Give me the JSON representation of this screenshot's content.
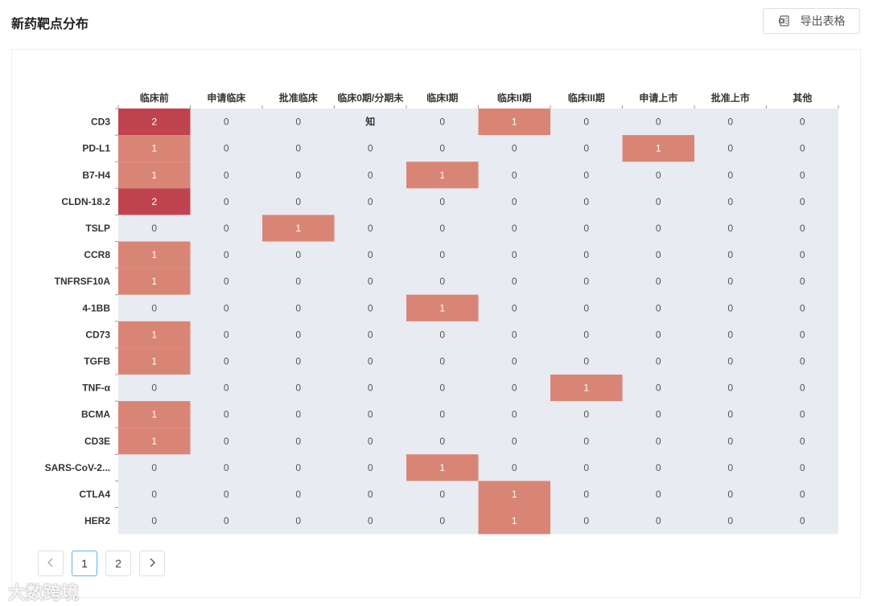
{
  "header": {
    "title": "新药靶点分布",
    "export_label": "导出表格",
    "export_icon": "excel-icon"
  },
  "pagination": {
    "prev_icon": "chevron-left-icon",
    "pages": [
      "1",
      "2"
    ],
    "current": "1",
    "next_icon": "chevron-right-icon"
  },
  "watermark": "大数跨境",
  "chart_data": {
    "type": "heatmap",
    "x_categories": [
      "临床前",
      "申请临床",
      "批准临床",
      "临床0期/分期未知",
      "临床I期",
      "临床II期",
      "临床III期",
      "申请上市",
      "批准上市",
      "其他"
    ],
    "x_tick_labels": [
      "临床前",
      "申请临床",
      "批准临床",
      "临床0期/分期未",
      "临床I期",
      "临床II期",
      "临床III期",
      "申请上市",
      "批准上市",
      "其他"
    ],
    "x_label_overflow": "知",
    "y_categories": [
      "CD3",
      "PD-L1",
      "B7-H4",
      "CLDN-18.2",
      "TSLP",
      "CCR8",
      "TNFRSF10A",
      "4-1BB",
      "CD73",
      "TGFB",
      "TNF-α",
      "BCMA",
      "CD3E",
      "SARS-CoV-2...",
      "CTLA4",
      "HER2"
    ],
    "values": [
      [
        2,
        0,
        0,
        0,
        0,
        1,
        0,
        0,
        0,
        0
      ],
      [
        1,
        0,
        0,
        0,
        0,
        0,
        0,
        1,
        0,
        0
      ],
      [
        1,
        0,
        0,
        0,
        1,
        0,
        0,
        0,
        0,
        0
      ],
      [
        2,
        0,
        0,
        0,
        0,
        0,
        0,
        0,
        0,
        0
      ],
      [
        0,
        0,
        1,
        0,
        0,
        0,
        0,
        0,
        0,
        0
      ],
      [
        1,
        0,
        0,
        0,
        0,
        0,
        0,
        0,
        0,
        0
      ],
      [
        1,
        0,
        0,
        0,
        0,
        0,
        0,
        0,
        0,
        0
      ],
      [
        0,
        0,
        0,
        0,
        1,
        0,
        0,
        0,
        0,
        0
      ],
      [
        1,
        0,
        0,
        0,
        0,
        0,
        0,
        0,
        0,
        0
      ],
      [
        1,
        0,
        0,
        0,
        0,
        0,
        0,
        0,
        0,
        0
      ],
      [
        0,
        0,
        0,
        0,
        0,
        0,
        1,
        0,
        0,
        0
      ],
      [
        1,
        0,
        0,
        0,
        0,
        0,
        0,
        0,
        0,
        0
      ],
      [
        1,
        0,
        0,
        0,
        0,
        0,
        0,
        0,
        0,
        0
      ],
      [
        0,
        0,
        0,
        0,
        1,
        0,
        0,
        0,
        0,
        0
      ],
      [
        0,
        0,
        0,
        0,
        0,
        1,
        0,
        0,
        0,
        0
      ],
      [
        0,
        0,
        0,
        0,
        0,
        1,
        0,
        0,
        0,
        0
      ]
    ],
    "colors": {
      "0": "#e8ebf1",
      "1": "#d98576",
      "2": "#c0444f"
    },
    "label_colors": {
      "0": "#555555",
      "1": "#ffffff",
      "2": "#ffffff"
    }
  }
}
